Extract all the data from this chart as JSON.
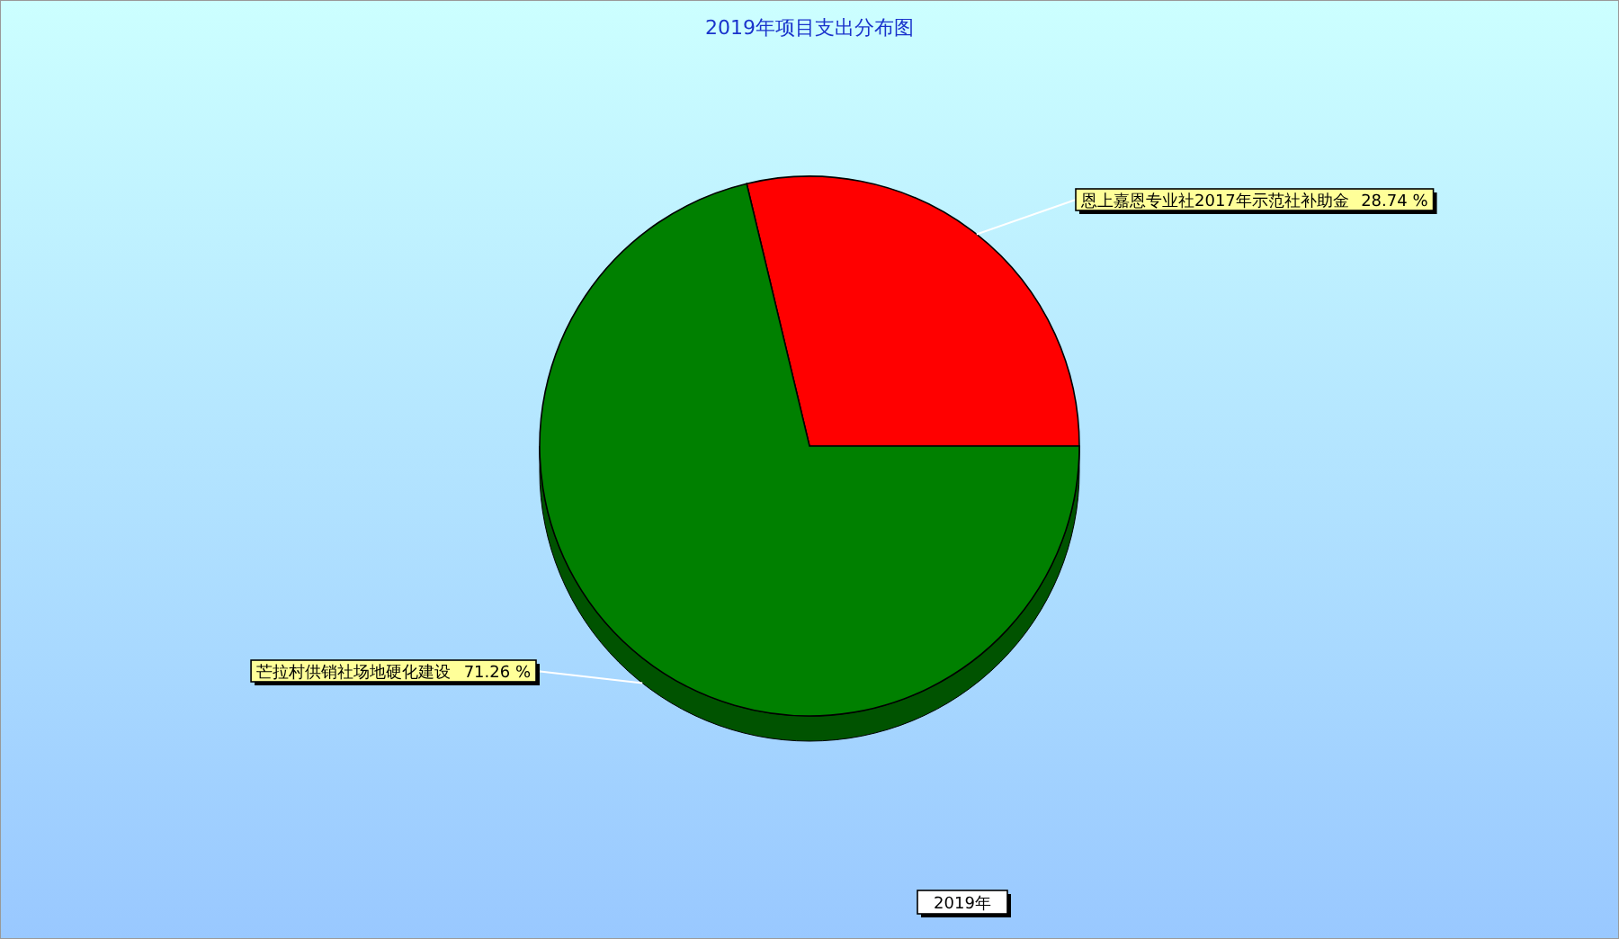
{
  "chart_data": {
    "type": "pie",
    "title": "2019年项目支出分布图",
    "xlabel": "2019年",
    "categories": [
      "恩上嘉恩专业社2017年示范社补助金",
      "芒拉村供销社场地硬化建设"
    ],
    "values": [
      28.74,
      71.26
    ],
    "colors": [
      "#ff0000",
      "#008000"
    ],
    "value_labels": [
      "28.74 %",
      "71.26 %"
    ]
  }
}
